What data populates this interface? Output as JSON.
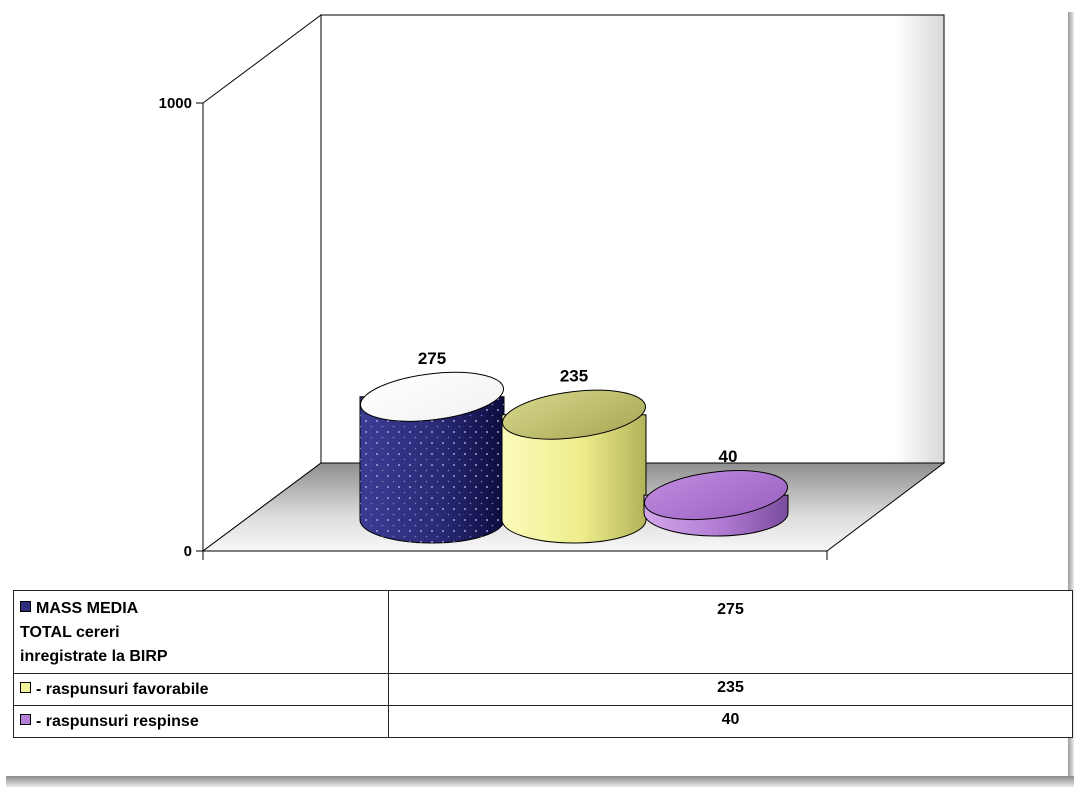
{
  "chart_data": {
    "type": "bar",
    "shape": "cylinder-3d",
    "categories": [
      "MASS MEDIA\nTOTAL cereri\ninregistrate la BIRP",
      "- raspunsuri favorabile",
      "- raspunsuri respinse"
    ],
    "values": [
      275,
      235,
      40
    ],
    "value_labels": [
      "275",
      "235",
      "40"
    ],
    "colors": [
      "#2e2e7c",
      "#f3f39a",
      "#b57ed6"
    ],
    "ylim": [
      0,
      1000
    ],
    "y_ticks": [
      "0",
      "1000"
    ],
    "grid": false,
    "legend": "data-table-below"
  }
}
